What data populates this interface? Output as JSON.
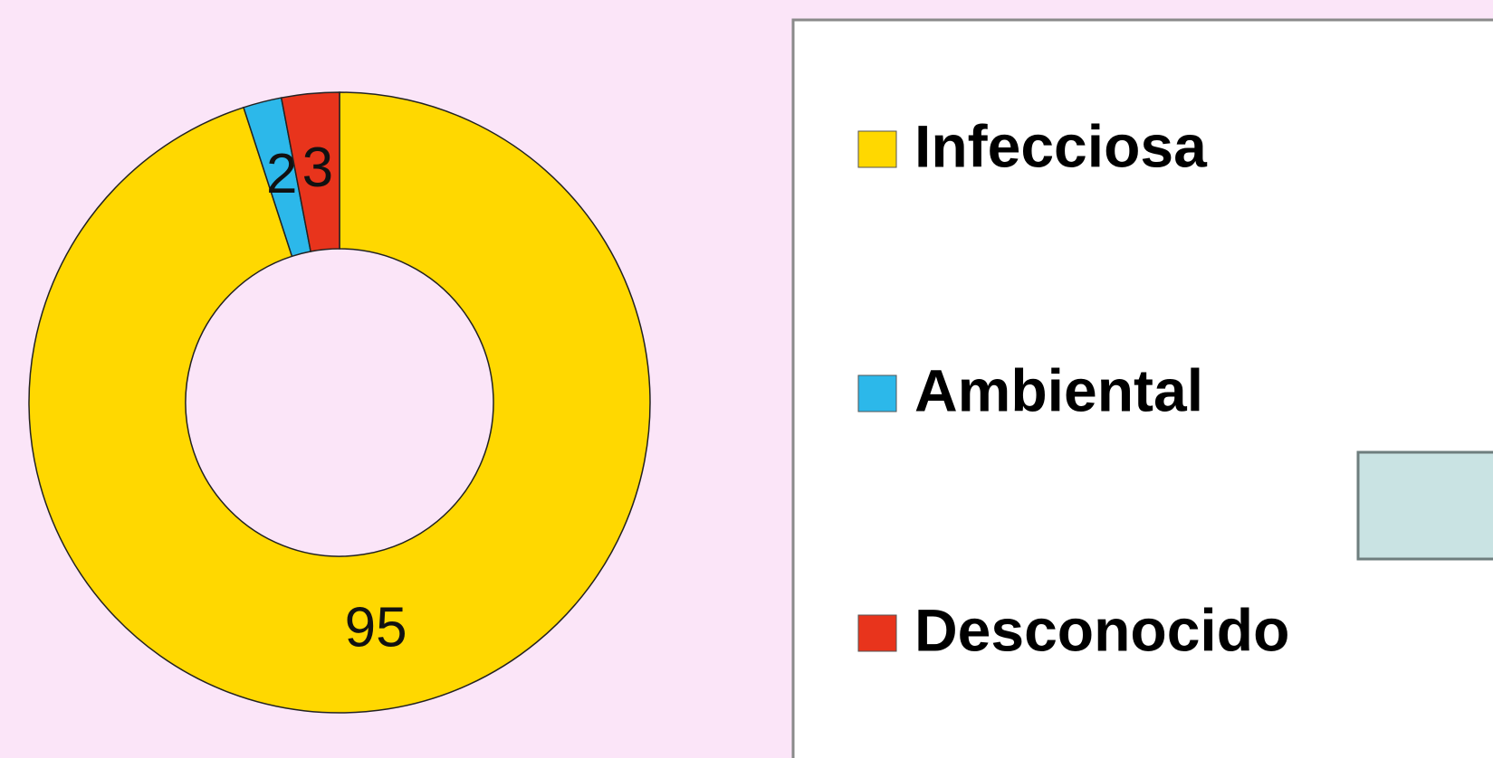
{
  "chart_data": {
    "type": "donut",
    "categories": [
      "Infecciosa",
      "Ambiental",
      "Desconocido"
    ],
    "values": [
      95,
      2,
      3
    ],
    "colors": [
      "#FFD800",
      "#2CB8EA",
      "#E8341C"
    ],
    "legend": "right"
  }
}
